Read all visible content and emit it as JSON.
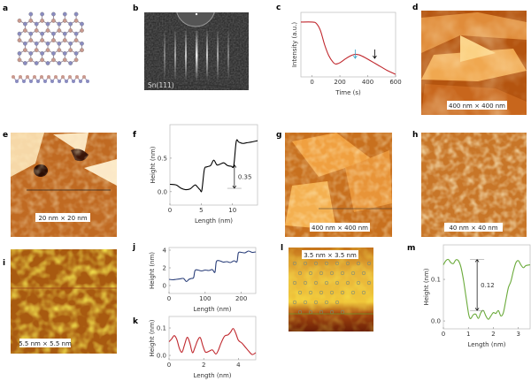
{
  "panels": {
    "a": {
      "label": "a"
    },
    "b": {
      "label": "b",
      "caption": "Sn(111)"
    },
    "c": {
      "label": "c"
    },
    "d": {
      "label": "d",
      "scale": "400 nm × 400 nm"
    },
    "e": {
      "label": "e",
      "scale": "20 nm × 20 nm"
    },
    "f": {
      "label": "f"
    },
    "g": {
      "label": "g",
      "scale": "400 nm × 400 nm"
    },
    "h": {
      "label": "h",
      "scale": "40 nm × 40 nm"
    },
    "i": {
      "label": "i",
      "scale": "5.5 nm × 5.5 nm"
    },
    "j": {
      "label": "j"
    },
    "k": {
      "label": "k"
    },
    "l": {
      "label": "l",
      "scale": "3.5 nm × 3.5 nm"
    },
    "m": {
      "label": "m"
    }
  },
  "colors": {
    "c_line": "#c0272d",
    "j_line": "#2b3f7a",
    "k_line": "#c0272d",
    "m_line": "#6aaa3a",
    "f_line": "#000000",
    "cyan_arrow": "#3aa6c8",
    "atom_pink": "#c9998e",
    "atom_blue": "#8a8cc0"
  },
  "chart_data": [
    {
      "id": "c",
      "type": "line",
      "xlabel": "Time (s)",
      "ylabel": "Intensity (a.u.)",
      "xlim": [
        -80,
        600
      ],
      "ylim": [
        0,
        1
      ],
      "xticks": [
        0,
        200,
        400,
        600
      ],
      "yticks": [],
      "x": [
        -80,
        0,
        30,
        60,
        90,
        120,
        150,
        170,
        200,
        240,
        280,
        310,
        340,
        380,
        420,
        460,
        500,
        540,
        580,
        600
      ],
      "y": [
        0.85,
        0.85,
        0.83,
        0.72,
        0.5,
        0.33,
        0.23,
        0.2,
        0.22,
        0.28,
        0.33,
        0.35,
        0.34,
        0.3,
        0.25,
        0.2,
        0.15,
        0.1,
        0.06,
        0.04
      ],
      "annotations": [
        {
          "type": "arrow",
          "x": 310,
          "color": "cyan"
        },
        {
          "type": "arrow",
          "x": 450,
          "color": "black"
        }
      ]
    },
    {
      "id": "f",
      "type": "line",
      "xlabel": "Length (nm)",
      "ylabel": "Height (nm)",
      "xlim": [
        0,
        14
      ],
      "ylim": [
        -0.2,
        1.0
      ],
      "xticks": [
        0,
        5,
        10
      ],
      "yticks": [
        "0.0",
        "0.5"
      ],
      "x": [
        0,
        1,
        1.8,
        2.5,
        3.2,
        4,
        4.4,
        4.8,
        5.1,
        5.5,
        5.9,
        6.5,
        7,
        7.5,
        8,
        8.6,
        9.2,
        9.8,
        10.2,
        10.6,
        11,
        11.6,
        12.3,
        13,
        14
      ],
      "y": [
        0.11,
        0.1,
        0.05,
        0.03,
        0.04,
        0.1,
        0.07,
        0.03,
        0.02,
        0.33,
        0.37,
        0.39,
        0.47,
        0.4,
        0.41,
        0.43,
        0.39,
        0.38,
        0.39,
        0.75,
        0.74,
        0.72,
        0.73,
        0.74,
        0.76
      ],
      "annotations": [
        {
          "type": "double-arrow",
          "x": 10.3,
          "y0": 0.05,
          "y1": 0.4,
          "text": "0.35"
        }
      ]
    },
    {
      "id": "j",
      "type": "line",
      "xlabel": "Length (nm)",
      "ylabel": "Height (nm)",
      "xlim": [
        0,
        240
      ],
      "ylim": [
        -0.9,
        4.3
      ],
      "xticks": [
        0,
        100,
        200
      ],
      "yticks": [
        "0",
        "2",
        "4"
      ],
      "x": [
        0,
        10,
        20,
        30,
        40,
        48,
        55,
        62,
        68,
        72,
        80,
        90,
        100,
        110,
        120,
        127,
        131,
        140,
        150,
        160,
        170,
        180,
        188,
        192,
        200,
        210,
        220,
        230,
        240
      ],
      "y": [
        0.7,
        0.65,
        0.7,
        0.75,
        0.8,
        0.45,
        0.7,
        0.8,
        0.9,
        1.7,
        1.75,
        1.65,
        1.75,
        1.7,
        1.8,
        1.5,
        2.7,
        2.8,
        2.65,
        2.7,
        2.6,
        2.8,
        2.7,
        3.7,
        3.75,
        3.7,
        3.9,
        3.75,
        3.8
      ]
    },
    {
      "id": "k",
      "type": "line",
      "xlabel": "Length (nm)",
      "ylabel": "Height (nm)",
      "xlim": [
        0,
        5
      ],
      "ylim": [
        -0.016,
        0.142
      ],
      "xticks": [
        0,
        2,
        4
      ],
      "yticks": [
        "0.0",
        "0.1"
      ],
      "x": [
        0,
        0.15,
        0.3,
        0.45,
        0.6,
        0.75,
        0.9,
        1.05,
        1.2,
        1.35,
        1.5,
        1.65,
        1.8,
        1.95,
        2.1,
        2.3,
        2.5,
        2.7,
        2.85,
        3.0,
        3.2,
        3.4,
        3.55,
        3.7,
        3.85,
        4.0,
        4.2,
        4.4,
        4.6,
        4.8,
        5.0
      ],
      "y": [
        0.05,
        0.06,
        0.072,
        0.058,
        0.025,
        0.012,
        0.04,
        0.066,
        0.045,
        0.01,
        0.03,
        0.055,
        0.065,
        0.035,
        0.012,
        0.015,
        0.02,
        0.005,
        0.02,
        0.045,
        0.07,
        0.075,
        0.085,
        0.098,
        0.08,
        0.055,
        0.045,
        0.03,
        0.015,
        0.003,
        0.01
      ]
    },
    {
      "id": "m",
      "type": "line",
      "xlabel": "Length (nm)",
      "ylabel": "Height (nm)",
      "xlim": [
        0,
        3.47
      ],
      "ylim": [
        -0.019,
        0.183
      ],
      "xticks": [
        0,
        1,
        2,
        3
      ],
      "yticks": [
        "0.0",
        "0.1"
      ],
      "x": [
        0,
        0.1,
        0.2,
        0.3,
        0.4,
        0.5,
        0.6,
        0.7,
        0.8,
        0.9,
        1.0,
        1.05,
        1.1,
        1.2,
        1.3,
        1.4,
        1.5,
        1.6,
        1.7,
        1.8,
        1.9,
        2.0,
        2.1,
        2.2,
        2.3,
        2.4,
        2.5,
        2.6,
        2.7,
        2.8,
        2.9,
        3.0,
        3.1,
        3.2,
        3.3,
        3.47
      ],
      "y": [
        0.135,
        0.145,
        0.148,
        0.14,
        0.138,
        0.147,
        0.145,
        0.13,
        0.1,
        0.06,
        0.02,
        0.008,
        0.006,
        0.015,
        0.016,
        0.006,
        0.02,
        0.025,
        0.012,
        0.004,
        0.012,
        0.02,
        0.018,
        0.025,
        0.012,
        0.02,
        0.05,
        0.08,
        0.095,
        0.12,
        0.14,
        0.145,
        0.135,
        0.128,
        0.133,
        0.135
      ],
      "annotations": [
        {
          "type": "double-arrow",
          "x": 1.35,
          "y0": 0.025,
          "y1": 0.148,
          "text": "0.12"
        }
      ]
    }
  ]
}
